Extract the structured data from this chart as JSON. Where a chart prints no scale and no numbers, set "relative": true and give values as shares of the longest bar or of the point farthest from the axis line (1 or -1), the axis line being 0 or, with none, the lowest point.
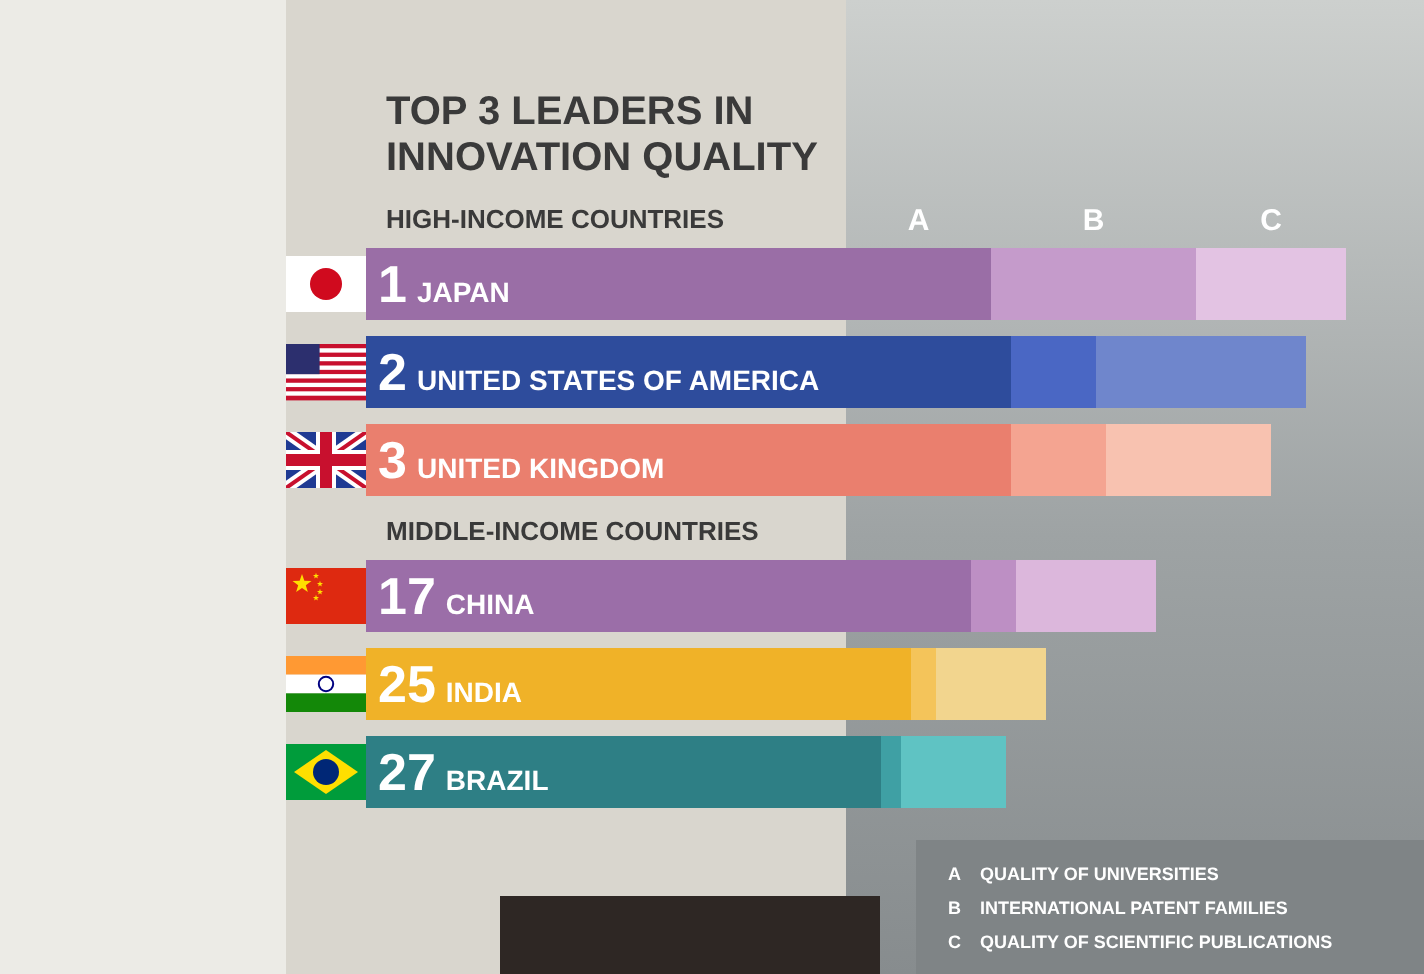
{
  "chart_data": {
    "type": "bar",
    "orientation": "horizontal",
    "stacked": true,
    "relative": true,
    "title": "TOP 3 LEADERS IN INNOVATION QUALITY",
    "categories": [
      "1 JAPAN",
      "2 UNITED STATES OF AMERICA",
      "3 UNITED KINGDOM",
      "17 CHINA",
      "25 INDIA",
      "27 BRAZIL"
    ],
    "series": [
      {
        "name": "A",
        "colors": [
          "#9a6ea6",
          "#2e4c9c",
          "#ea7f6e",
          "#9b6ea8",
          "#f0b228",
          "#2e7f85"
        ],
        "values": [
          0.29,
          0.33,
          0.33,
          0.25,
          0.13,
          0.07
        ]
      },
      {
        "name": "B",
        "colors": [
          "#c59bcb",
          "#4a67c4",
          "#f4a491",
          "#bd8fc4",
          "#f4c45a",
          "#3fa0a4"
        ],
        "values": [
          0.41,
          0.17,
          0.19,
          0.09,
          0.05,
          0.04
        ]
      },
      {
        "name": "C",
        "colors": [
          "#e3c3e3",
          "#6f86cc",
          "#f8c2b0",
          "#dcb7dc",
          "#f2d58e",
          "#5fc3c3"
        ],
        "values": [
          0.3,
          0.42,
          0.33,
          0.28,
          0.22,
          0.21
        ]
      }
    ],
    "annotations": [
      "HIGH-INCOME COUNTRIES",
      "MIDDLE-INCOME COUNTRIES",
      "A QUALITY OF UNIVERSITIES",
      "B INTERNATIONAL PATENT FAMILIES",
      "C QUALITY OF SCIENTIFIC PUBLICATIONS"
    ]
  }
}
